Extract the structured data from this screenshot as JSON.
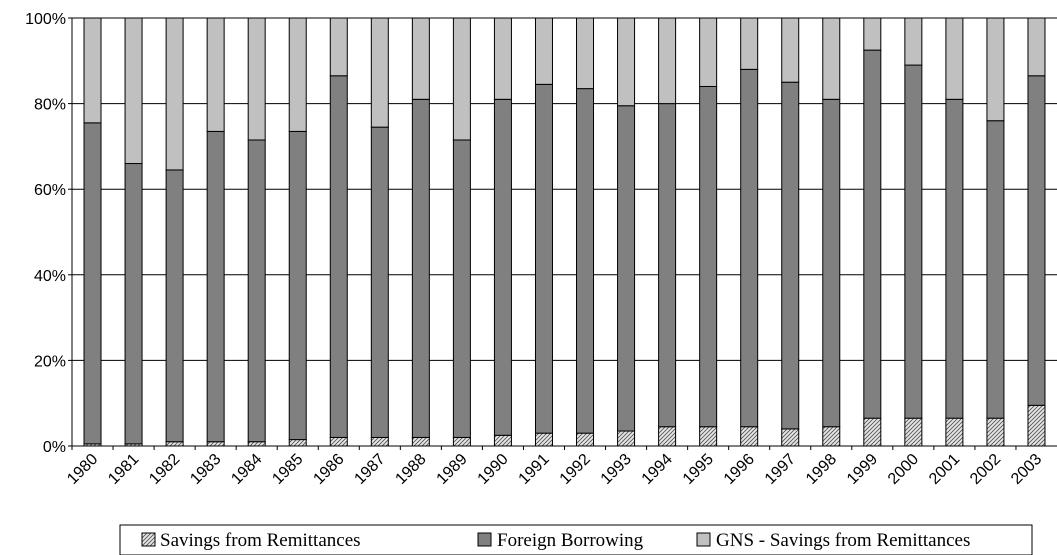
{
  "chart_data": {
    "type": "bar",
    "stacked": true,
    "percent_stacked": true,
    "categories": [
      "1980",
      "1981",
      "1982",
      "1983",
      "1984",
      "1985",
      "1986",
      "1987",
      "1988",
      "1989",
      "1990",
      "1991",
      "1992",
      "1993",
      "1994",
      "1995",
      "1996",
      "1997",
      "1998",
      "1999",
      "2000",
      "2001",
      "2002",
      "2003"
    ],
    "series": [
      {
        "name": "Savings from Remittances",
        "fill": "pattern-hatch",
        "values": [
          0.5,
          0.5,
          1,
          1,
          1,
          1.5,
          2,
          2,
          2,
          2,
          2.5,
          3,
          3,
          3.5,
          4.5,
          4.5,
          4.5,
          4,
          4.5,
          6.5,
          6.5,
          6.5,
          6.5,
          9.5
        ]
      },
      {
        "name": "Foreign Borrowing",
        "color": "#808080",
        "values": [
          75,
          65.5,
          63.5,
          72.5,
          70.5,
          72,
          84.5,
          72.5,
          79,
          69.5,
          78.5,
          81.5,
          80.5,
          76,
          75.5,
          79.5,
          83.5,
          81,
          76.5,
          86,
          82.5,
          74.5,
          69.5,
          77
        ]
      },
      {
        "name": "GNS - Savings from Remittances",
        "color": "#c0c0c0",
        "values": [
          24.5,
          34,
          35.5,
          26.5,
          28.5,
          26.5,
          13.5,
          25.5,
          19,
          28.5,
          19,
          15.5,
          16.5,
          20.5,
          20,
          16,
          12,
          15,
          19,
          7.5,
          11,
          19,
          24,
          13.5
        ]
      }
    ],
    "ylim": [
      0,
      100
    ],
    "yticks": [
      "0%",
      "20%",
      "40%",
      "60%",
      "80%",
      "100%"
    ],
    "grid": true,
    "legend_position": "bottom"
  }
}
